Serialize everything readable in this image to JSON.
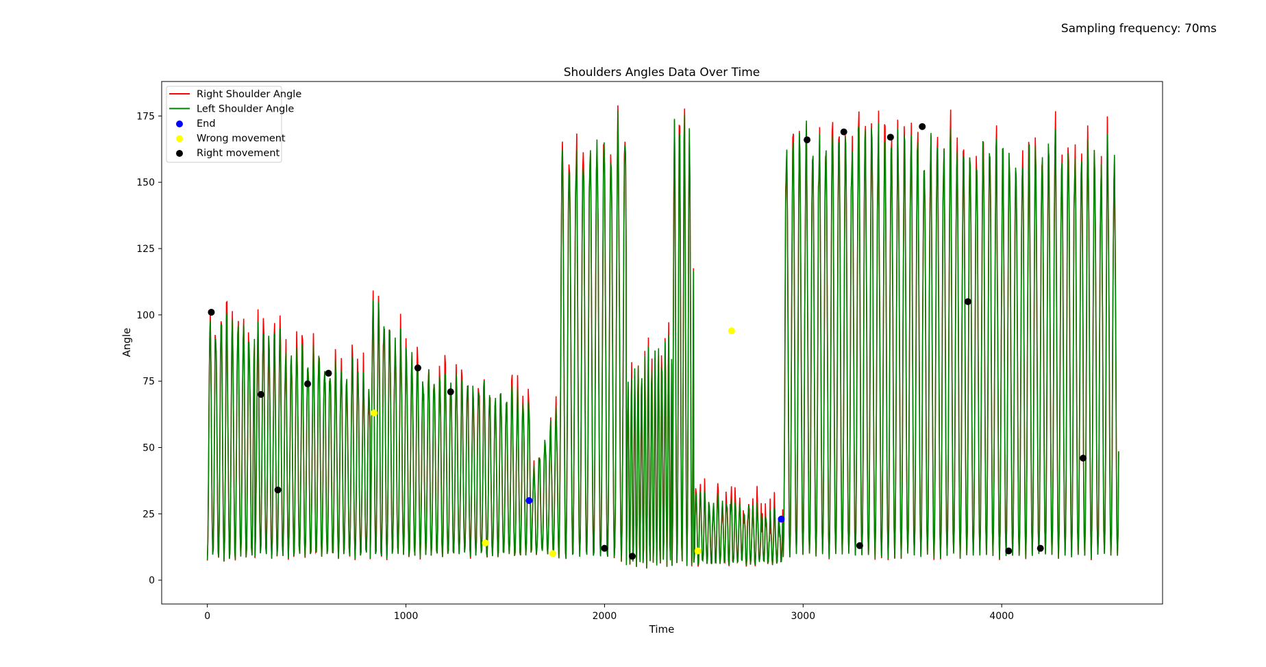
{
  "note": "Sampling frequency: 70ms",
  "chart_data": {
    "type": "line",
    "title": "Shoulders Angles Data Over Time",
    "xlabel": "Time",
    "ylabel": "Angle",
    "xlim": [
      -230,
      4810
    ],
    "ylim": [
      -9,
      188
    ],
    "xticks": [
      0,
      1000,
      2000,
      3000,
      4000
    ],
    "yticks": [
      0,
      25,
      50,
      75,
      100,
      125,
      150,
      175
    ],
    "grid": false,
    "legend_position": "top-left",
    "series": [
      {
        "name": "Right Shoulder Angle",
        "color": "#ff0000",
        "kind": "line"
      },
      {
        "name": "Left Shoulder Angle",
        "color": "#008000",
        "kind": "line"
      },
      {
        "name": "End",
        "color": "#0000ff",
        "kind": "marker",
        "points": [
          [
            1620,
            30
          ],
          [
            2890,
            23
          ]
        ]
      },
      {
        "name": "Wrong movement",
        "color": "#ffff00",
        "kind": "marker",
        "points": [
          [
            840,
            63
          ],
          [
            1400,
            14
          ],
          [
            1740,
            10
          ],
          [
            2470,
            11
          ],
          [
            2640,
            94
          ]
        ]
      },
      {
        "name": "Right movement",
        "color": "#000000",
        "kind": "marker",
        "points": [
          [
            20,
            101
          ],
          [
            270,
            70
          ],
          [
            355,
            34
          ],
          [
            505,
            74
          ],
          [
            610,
            78
          ],
          [
            1060,
            80
          ],
          [
            1225,
            71
          ],
          [
            2000,
            12
          ],
          [
            2140,
            9
          ],
          [
            3020,
            166
          ],
          [
            3205,
            169
          ],
          [
            3285,
            13
          ],
          [
            3440,
            167
          ],
          [
            3600,
            171
          ],
          [
            3830,
            105
          ],
          [
            4035,
            11
          ],
          [
            4195,
            12
          ],
          [
            4410,
            46
          ]
        ]
      }
    ],
    "segments": [
      {
        "x0": 0,
        "x1": 240,
        "period": 28,
        "peak_start": 101,
        "peak_end": 102,
        "low": 8
      },
      {
        "x0": 240,
        "x1": 820,
        "period": 28,
        "peak_start": 97,
        "peak_end": 80,
        "low": 9
      },
      {
        "x0": 820,
        "x1": 1100,
        "period": 28,
        "peak_start": 110,
        "peak_end": 82,
        "low": 9
      },
      {
        "x0": 1100,
        "x1": 1630,
        "period": 28,
        "peak_start": 82,
        "peak_end": 70,
        "low": 9
      },
      {
        "x0": 1630,
        "x1": 1770,
        "period": 28,
        "peak_start": 40,
        "peak_end": 70,
        "low": 10
      },
      {
        "x0": 1770,
        "x1": 2110,
        "period": 35,
        "peak_start": 165,
        "peak_end": 178,
        "low": 8
      },
      {
        "x0": 2110,
        "x1": 2340,
        "period": 17,
        "peak_start": 80,
        "peak_end": 95,
        "low": 5
      },
      {
        "x0": 2340,
        "x1": 2450,
        "period": 25,
        "peak_start": 178,
        "peak_end": 175,
        "low": 5
      },
      {
        "x0": 2450,
        "x1": 2900,
        "period": 22,
        "peak_start": 35,
        "peak_end": 25,
        "low": 6
      },
      {
        "x0": 2900,
        "x1": 4590,
        "period": 33,
        "peak_start": 178,
        "peak_end": 168,
        "low": 9
      }
    ]
  }
}
